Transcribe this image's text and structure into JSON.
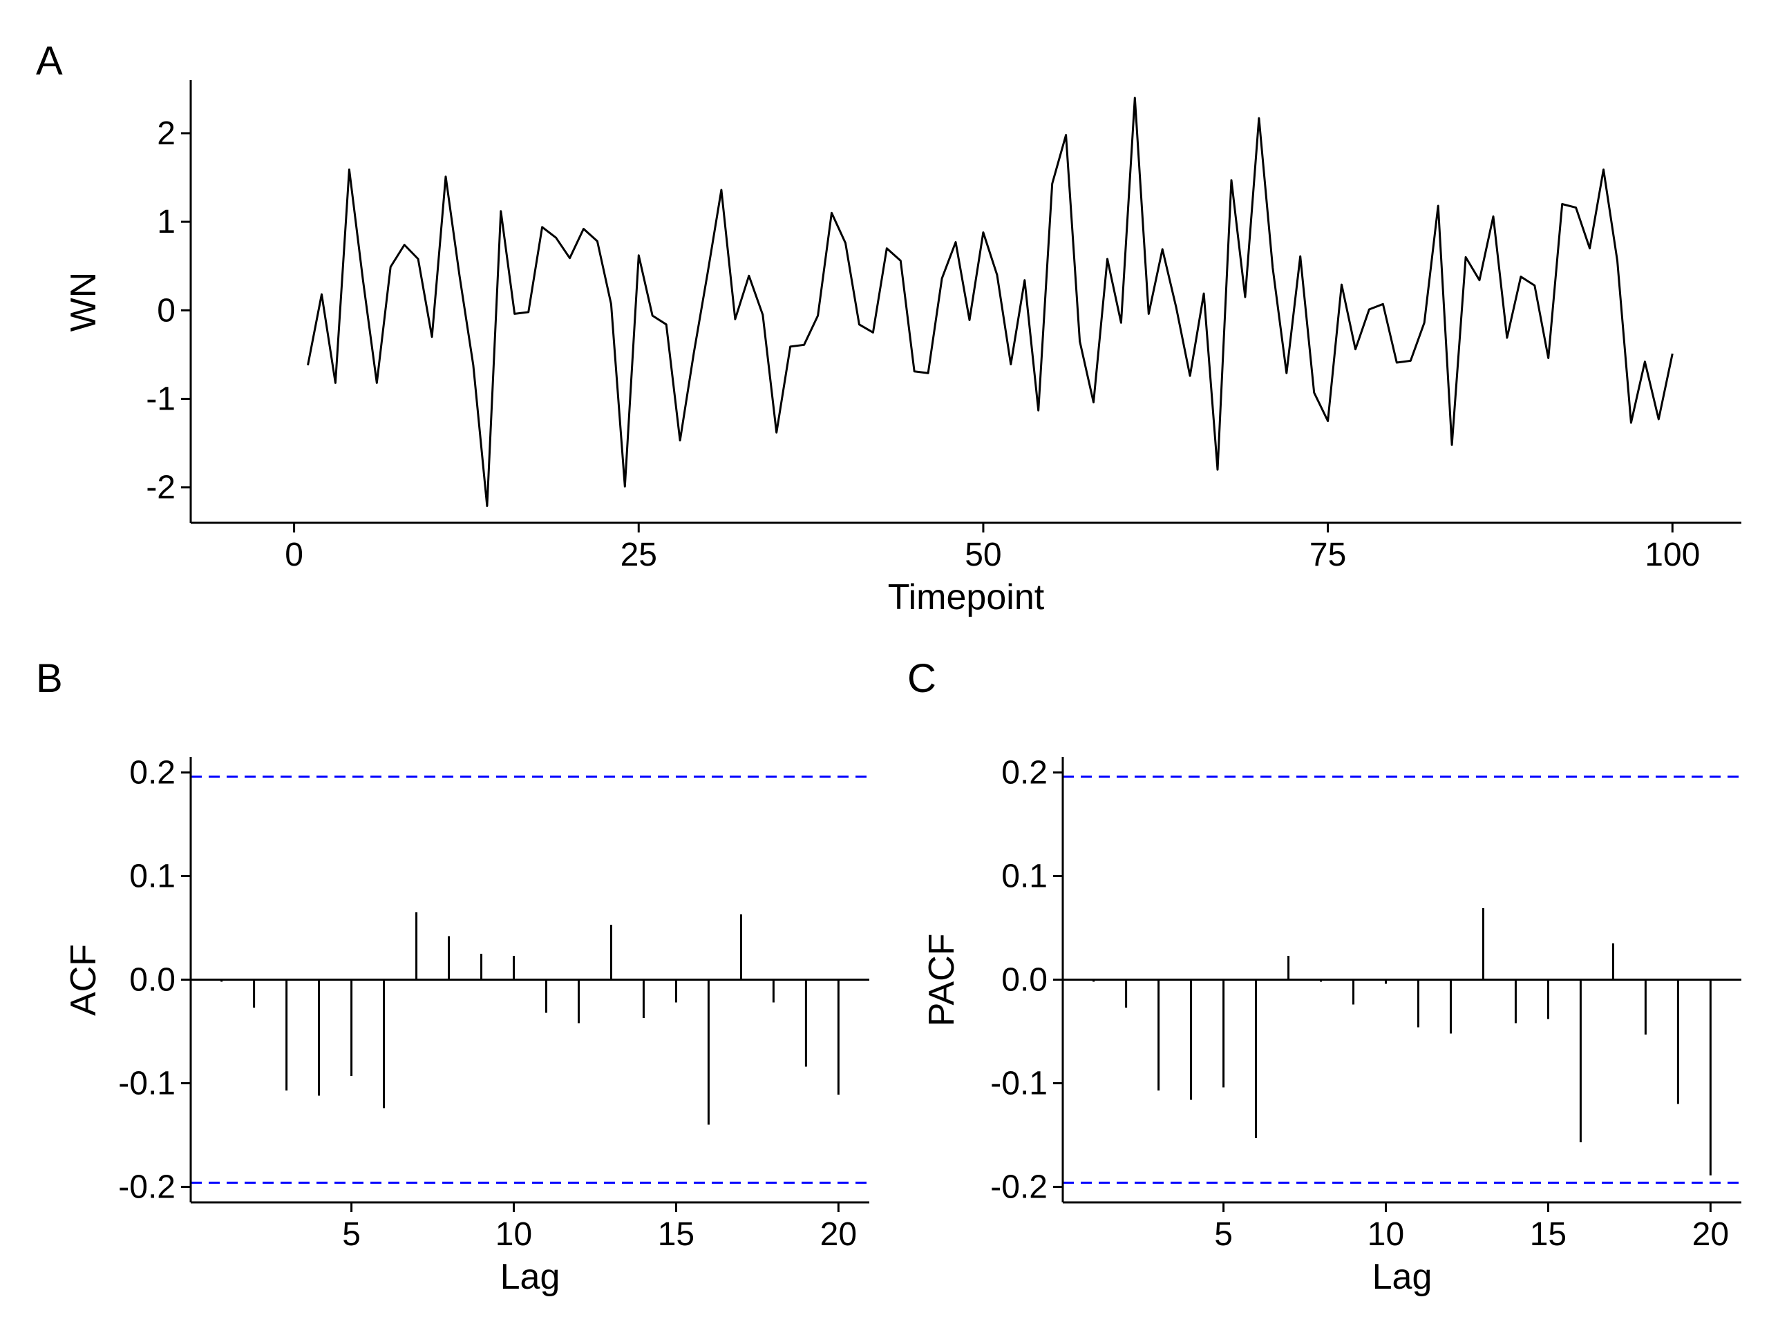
{
  "chart_data": [
    {
      "type": "line",
      "panel_label": "A",
      "xlabel": "Timepoint",
      "ylabel": "WN",
      "xlim": [
        -7.5,
        105
      ],
      "ylim": [
        -2.4,
        2.6
      ],
      "xticks": [
        0,
        25,
        50,
        75,
        100
      ],
      "yticks": [
        -2,
        -1,
        0,
        1,
        2
      ],
      "grid": false,
      "series": [
        {
          "color": "#000000",
          "x": [
            1,
            2,
            3,
            4,
            5,
            6,
            7,
            8,
            9,
            10,
            11,
            12,
            13,
            14,
            15,
            16,
            17,
            18,
            19,
            20,
            21,
            22,
            23,
            24,
            25,
            26,
            27,
            28,
            29,
            30,
            31,
            32,
            33,
            34,
            35,
            36,
            37,
            38,
            39,
            40,
            41,
            42,
            43,
            44,
            45,
            46,
            47,
            48,
            49,
            50,
            51,
            52,
            53,
            54,
            55,
            56,
            57,
            58,
            59,
            60,
            61,
            62,
            63,
            64,
            65,
            66,
            67,
            68,
            69,
            70,
            71,
            72,
            73,
            74,
            75,
            76,
            77,
            78,
            79,
            80,
            81,
            82,
            83,
            84,
            85,
            86,
            87,
            88,
            89,
            90,
            91,
            92,
            93,
            94,
            95,
            96,
            97,
            98,
            99,
            100
          ],
          "y": [
            -0.62,
            0.18,
            -0.82,
            1.59,
            0.34,
            -0.82,
            0.49,
            0.74,
            0.58,
            -0.3,
            1.51,
            0.39,
            -0.62,
            -2.21,
            1.12,
            -0.04,
            -0.02,
            0.94,
            0.82,
            0.59,
            0.92,
            0.78,
            0.07,
            -1.99,
            0.62,
            -0.06,
            -0.16,
            -1.47,
            -0.48,
            0.42,
            1.36,
            -0.1,
            0.39,
            -0.05,
            -1.38,
            -0.41,
            -0.39,
            -0.06,
            1.1,
            0.76,
            -0.16,
            -0.25,
            0.7,
            0.56,
            -0.69,
            -0.71,
            0.36,
            0.77,
            -0.11,
            0.88,
            0.4,
            -0.61,
            0.34,
            -1.13,
            1.43,
            1.98,
            -0.35,
            -1.04,
            0.58,
            -0.14,
            2.4,
            -0.04,
            0.69,
            0.03,
            -0.74,
            0.19,
            -1.8,
            1.47,
            0.15,
            2.17,
            0.48,
            -0.71,
            0.61,
            -0.93,
            -1.25,
            0.29,
            -0.44,
            0.01,
            0.07,
            -0.59,
            -0.57,
            -0.14,
            1.18,
            -1.52,
            0.6,
            0.34,
            1.06,
            -0.31,
            0.38,
            0.28,
            -0.54,
            1.2,
            1.16,
            0.7,
            1.59,
            0.56,
            -1.27,
            -0.58,
            -1.23,
            -0.49
          ]
        }
      ]
    },
    {
      "type": "bar",
      "panel_label": "B",
      "xlabel": "Lag",
      "ylabel": "ACF",
      "xlim": [
        0.05,
        20.95
      ],
      "ylim": [
        -0.215,
        0.215
      ],
      "xticks": [
        5,
        10,
        15,
        20
      ],
      "yticks": [
        -0.2,
        -0.1,
        0.0,
        0.1,
        0.2
      ],
      "ytick_labels": [
        "-0.2",
        "-0.1",
        "0.0",
        "0.1",
        "0.2"
      ],
      "conf_bounds": [
        -0.196,
        0.196
      ],
      "conf_color": "#0000ff",
      "grid": false,
      "lags": [
        1,
        2,
        3,
        4,
        5,
        6,
        7,
        8,
        9,
        10,
        11,
        12,
        13,
        14,
        15,
        16,
        17,
        18,
        19,
        20
      ],
      "values": [
        -0.002,
        -0.027,
        -0.107,
        -0.112,
        -0.093,
        -0.124,
        0.065,
        0.042,
        0.025,
        0.023,
        -0.032,
        -0.042,
        0.053,
        -0.037,
        -0.022,
        -0.14,
        0.063,
        -0.022,
        -0.084,
        -0.111
      ]
    },
    {
      "type": "bar",
      "panel_label": "C",
      "xlabel": "Lag",
      "ylabel": "PACF",
      "xlim": [
        0.05,
        20.95
      ],
      "ylim": [
        -0.215,
        0.215
      ],
      "xticks": [
        5,
        10,
        15,
        20
      ],
      "yticks": [
        -0.2,
        -0.1,
        0.0,
        0.1,
        0.2
      ],
      "ytick_labels": [
        "-0.2",
        "-0.1",
        "0.0",
        "0.1",
        "0.2"
      ],
      "conf_bounds": [
        -0.196,
        0.196
      ],
      "conf_color": "#0000ff",
      "grid": false,
      "lags": [
        1,
        2,
        3,
        4,
        5,
        6,
        7,
        8,
        9,
        10,
        11,
        12,
        13,
        14,
        15,
        16,
        17,
        18,
        19,
        20
      ],
      "values": [
        -0.002,
        -0.027,
        -0.107,
        -0.116,
        -0.104,
        -0.153,
        0.023,
        -0.002,
        -0.024,
        -0.004,
        -0.046,
        -0.052,
        0.069,
        -0.042,
        -0.038,
        -0.157,
        0.035,
        -0.053,
        -0.12,
        -0.189
      ]
    }
  ]
}
